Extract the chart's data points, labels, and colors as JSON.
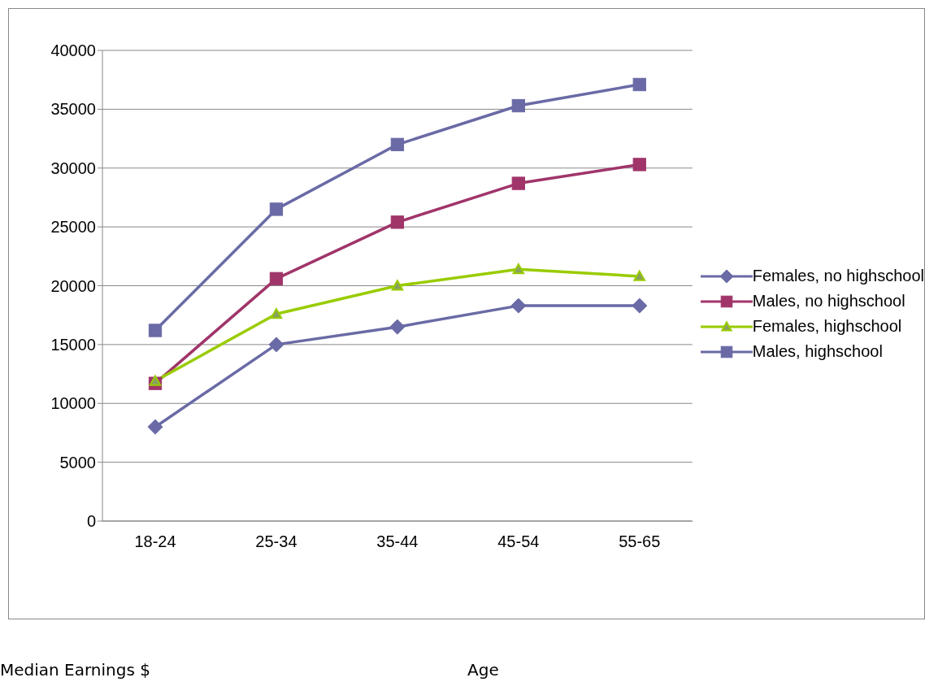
{
  "chart_data": {
    "type": "line",
    "annotations": [
      "Median Earnings $",
      "Age"
    ],
    "categories": [
      "18-24",
      "25-34",
      "35-44",
      "45-54",
      "55-65"
    ],
    "series": [
      {
        "name": "Females, no highschool",
        "color": "#6a6aa6",
        "marker": "diamond",
        "values": [
          8000,
          15000,
          16500,
          18300,
          18300
        ]
      },
      {
        "name": "Males, no highschool",
        "color": "#a0356a",
        "marker": "square",
        "values": [
          11700,
          20600,
          25400,
          28700,
          30300
        ]
      },
      {
        "name": "Females, highschool",
        "color": "#99cc00",
        "marker": "triangle",
        "values": [
          11900,
          17600,
          20000,
          21400,
          20800
        ]
      },
      {
        "name": "Males, highschool",
        "color": "#6a6aa6",
        "marker": "square",
        "values": [
          16200,
          26500,
          32000,
          35300,
          37100
        ]
      }
    ],
    "ylim": [
      0,
      40000
    ],
    "yticks": [
      0,
      5000,
      10000,
      15000,
      20000,
      25000,
      30000,
      35000,
      40000
    ],
    "grid": "y",
    "legend": "right",
    "line_style": "solid"
  }
}
